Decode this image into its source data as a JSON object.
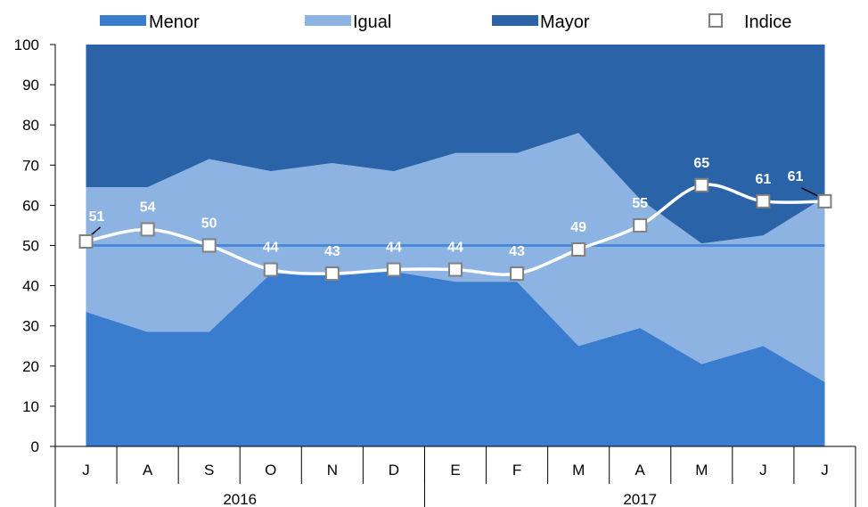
{
  "chart_data": {
    "type": "area",
    "categories": [
      "J",
      "A",
      "S",
      "O",
      "N",
      "D",
      "E",
      "F",
      "M",
      "A",
      "M",
      "J",
      "J"
    ],
    "year_groups": [
      {
        "label": "2016",
        "span": 6
      },
      {
        "label": "2017",
        "span": 7
      }
    ],
    "series": [
      {
        "name": "Menor",
        "values": [
          33.5,
          28.5,
          28.5,
          43,
          43,
          43.5,
          41,
          41,
          25,
          29.5,
          20.5,
          25,
          16
        ]
      },
      {
        "name": "Igual",
        "values": [
          31,
          36,
          43,
          25.5,
          27.5,
          25,
          32,
          32,
          53,
          32,
          30,
          27.5,
          46
        ]
      },
      {
        "name": "Mayor",
        "values": [
          35.5,
          35.5,
          28.5,
          31.5,
          29.5,
          31.5,
          27,
          27,
          22,
          38.5,
          49.5,
          47.5,
          38
        ]
      }
    ],
    "line_series": {
      "name": "Indice",
      "values": [
        51,
        54,
        50,
        44,
        43,
        44,
        44,
        43,
        49,
        55,
        65,
        61,
        61
      ],
      "labels": [
        "51",
        "54",
        "50",
        "44",
        "43",
        "44",
        "44",
        "43",
        "49",
        "55",
        "65",
        "61",
        "61"
      ]
    },
    "reference_line": 50,
    "ylim": [
      0,
      100
    ],
    "yticks": [
      "0",
      "10",
      "20",
      "30",
      "40",
      "50",
      "60",
      "70",
      "80",
      "90",
      "100"
    ],
    "legend_position": "top",
    "colors": {
      "Menor": "#3a7dcf",
      "Igual": "#8db3e2",
      "Mayor": "#2a63a8",
      "Indice_line": "#ffffff",
      "reference_line": "#4a88d8",
      "marker_stroke": "#808080"
    }
  }
}
